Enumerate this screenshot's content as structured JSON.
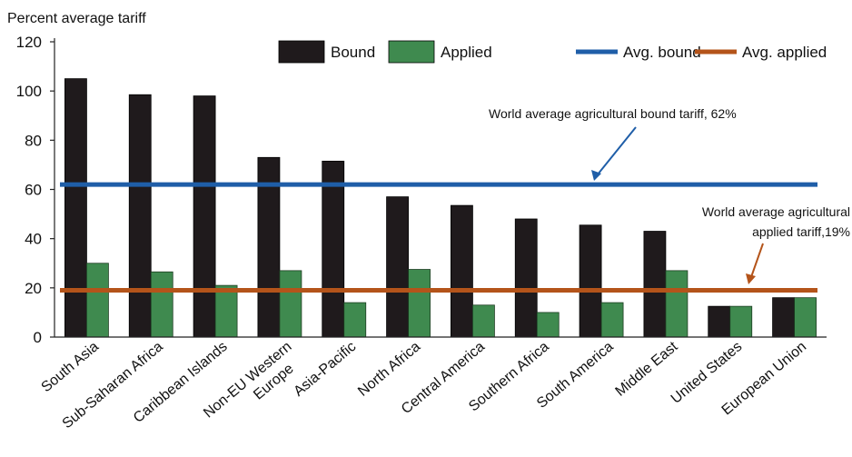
{
  "chart_data": {
    "type": "bar",
    "ylabel": "Percent average tariff",
    "ylim": [
      0,
      120
    ],
    "yticks": [
      0,
      20,
      40,
      60,
      80,
      100,
      120
    ],
    "categories": [
      "South Asia",
      "Sub-Saharan Africa",
      "Caribbean Islands",
      "Non-EU Western\nEurope",
      "Asia-Pacific",
      "North Africa",
      "Central America",
      "Southern Africa",
      "South America",
      "Middle East",
      "United States",
      "European Union"
    ],
    "series": [
      {
        "name": "Bound",
        "color": "#1f1a1c",
        "values": [
          105,
          98.5,
          98,
          73,
          71.5,
          57,
          53.5,
          48,
          45.5,
          43,
          12.5,
          16
        ]
      },
      {
        "name": "Applied",
        "color": "#3f8a4f",
        "values": [
          30,
          26.5,
          21,
          27,
          14,
          27.5,
          13,
          10,
          14,
          27,
          12.5,
          16
        ]
      }
    ],
    "reference_lines": [
      {
        "name": "Avg. bound",
        "value": 62,
        "color": "#1f5ea8"
      },
      {
        "name": "Avg. applied",
        "value": 19,
        "color": "#b4541a"
      }
    ],
    "legend": [
      "Bound",
      "Applied",
      "Avg. bound",
      "Avg. applied"
    ],
    "legend_position": "top-right",
    "annotations": [
      {
        "text": "World average agricultural bound tariff, 62%"
      },
      {
        "text_lines": [
          "World average agricultural",
          "applied tariff,19%"
        ]
      }
    ],
    "grid": false
  }
}
